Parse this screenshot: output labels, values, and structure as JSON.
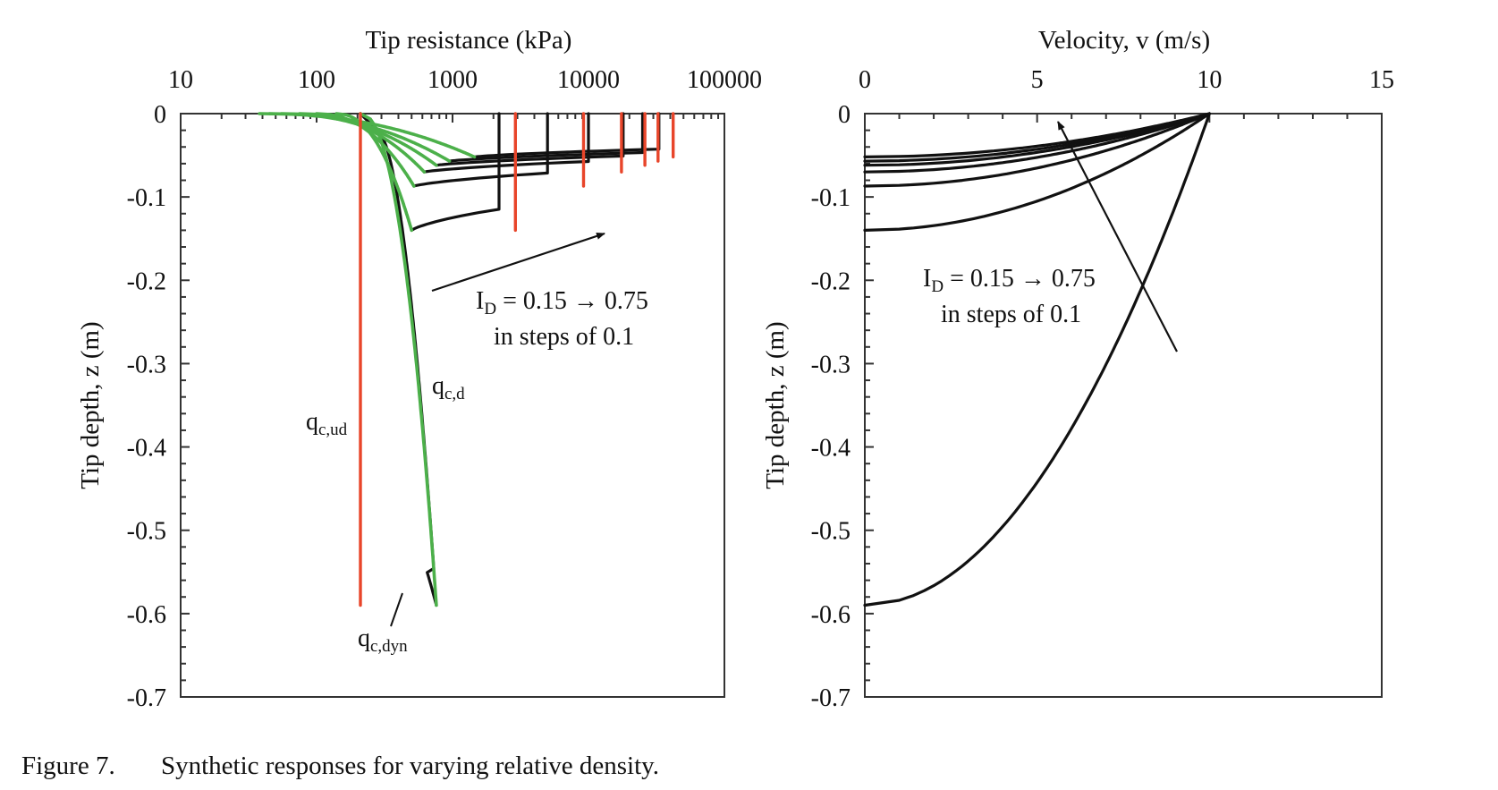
{
  "caption": {
    "number": "Figure 7.",
    "text": "Synthetic responses for varying relative density."
  },
  "colors": {
    "red": "#e8452a",
    "green": "#4cb04a",
    "black": "#111111"
  },
  "chart_data": [
    {
      "type": "line",
      "x_scale": "log",
      "xlabel": "Tip resistance (kPa)",
      "ylabel": "Tip depth, z (m)",
      "xlim": [
        10,
        100000
      ],
      "ylim": [
        -0.7,
        0
      ],
      "x_ticks": [
        "10",
        "100",
        "1000",
        "10000",
        "100000"
      ],
      "y_ticks": [
        "0",
        "-0.1",
        "-0.2",
        "-0.3",
        "-0.4",
        "-0.5",
        "-0.6",
        "-0.7"
      ],
      "grid": false,
      "annotations": {
        "id_prefix": "I",
        "id_sub": "D",
        "id_rest": " = 0.15 → 0.75",
        "steps": "in steps of 0.1",
        "qcd": {
          "base": "q",
          "sub": "c,d"
        },
        "qcud": {
          "base": "q",
          "sub": "c,ud"
        },
        "qcdyn": {
          "base": "q",
          "sub": "c,dyn"
        }
      },
      "series_groups": {
        "qc_ud": [
          {
            "x": [
              [
                210,
                0
              ],
              [
                210,
                -0.59
              ]
            ]
          },
          {
            "x": [
              [
                2900,
                0
              ],
              [
                2900,
                -0.14
              ]
            ]
          },
          {
            "x": [
              [
                9200,
                0
              ],
              [
                9200,
                -0.087
              ]
            ]
          },
          {
            "x": [
              [
                17500,
                0
              ],
              [
                17500,
                -0.07
              ]
            ]
          },
          {
            "x": [
              [
                26000,
                0
              ],
              [
                26000,
                -0.062
              ]
            ]
          },
          {
            "x": [
              [
                32500,
                0
              ],
              [
                32500,
                -0.057
              ]
            ]
          },
          {
            "x": [
              [
                42000,
                0
              ],
              [
                42000,
                -0.052
              ]
            ]
          }
        ],
        "qc_d": [
          {
            "start": 210,
            "end": [
              760,
              -0.59
            ]
          },
          {
            "start": 140,
            "end": [
              500,
              -0.14
            ]
          },
          {
            "start": 100,
            "end": [
              520,
              -0.087
            ]
          },
          {
            "start": 75,
            "end": [
              620,
              -0.07
            ]
          },
          {
            "start": 55,
            "end": [
              760,
              -0.062
            ]
          },
          {
            "start": 45,
            "end": [
              950,
              -0.057
            ]
          },
          {
            "start": 38,
            "end": [
              1450,
              -0.052
            ]
          }
        ],
        "qc_dyn": [
          {
            "x_top": 210,
            "z_end": -0.59,
            "x_end": 760
          },
          {
            "x_top": 2200,
            "z_end": -0.14,
            "x_end": 500
          },
          {
            "x_top": 5000,
            "z_end": -0.087,
            "x_end": 520
          },
          {
            "x_top": 10000,
            "z_end": -0.07,
            "x_end": 620
          },
          {
            "x_top": 18000,
            "z_end": -0.062,
            "x_end": 760
          },
          {
            "x_top": 25000,
            "z_end": -0.057,
            "x_end": 950
          },
          {
            "x_top": 33000,
            "z_end": -0.052,
            "x_end": 1450
          }
        ]
      }
    },
    {
      "type": "line",
      "xlabel": "Velocity, v (m/s)",
      "ylabel": "Tip depth, z (m)",
      "xlim": [
        0,
        15
      ],
      "ylim": [
        -0.7,
        0
      ],
      "x_ticks": [
        "0",
        "5",
        "10",
        "15"
      ],
      "y_ticks": [
        "0",
        "-0.1",
        "-0.2",
        "-0.3",
        "-0.4",
        "-0.5",
        "-0.6",
        "-0.7"
      ],
      "grid": false,
      "annotations": {
        "id_prefix": "I",
        "id_sub": "D",
        "id_rest": " = 0.15 → 0.75",
        "steps": "in steps of 0.1"
      },
      "series": [
        {
          "v0": 10,
          "z_stop": -0.59
        },
        {
          "v0": 10,
          "z_stop": -0.14
        },
        {
          "v0": 10,
          "z_stop": -0.087
        },
        {
          "v0": 10,
          "z_stop": -0.07
        },
        {
          "v0": 10,
          "z_stop": -0.062
        },
        {
          "v0": 10,
          "z_stop": -0.057
        },
        {
          "v0": 10,
          "z_stop": -0.052
        }
      ]
    }
  ]
}
